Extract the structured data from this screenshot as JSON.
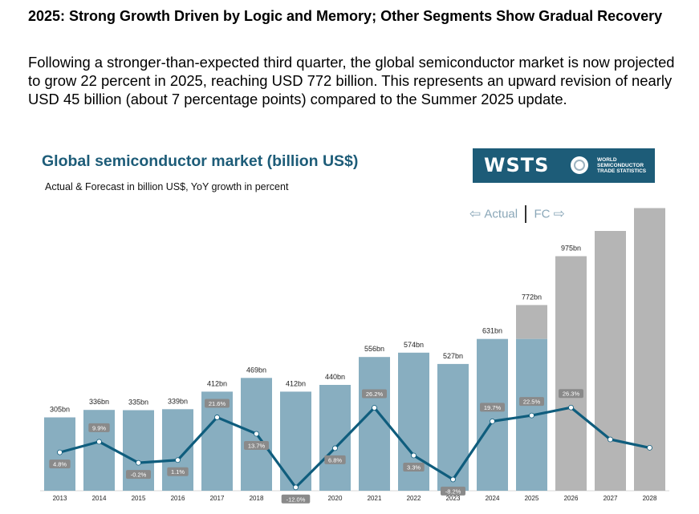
{
  "heading": "2025: Strong Growth Driven by Logic and Memory; Other Segments Show Gradual Recovery",
  "intro": "Following a stronger-than-expected third quarter, the global semiconductor market is now projected to grow 22 percent in 2025, reaching USD 772 billion. This represents an upward revision of nearly USD 45 billion (about 7 percentage points) compared to the Summer 2025 update.",
  "logo": {
    "mark": "WSTS",
    "line1": "WORLD",
    "line2": "SEMICONDUCTOR",
    "line3": "TRADE STATISTICS"
  },
  "legend": {
    "actual_arrow": "⇦",
    "actual": "Actual",
    "fc": "FC",
    "fc_arrow": "⇨"
  },
  "colors": {
    "actual_bar": "#88aec0",
    "forecast_bar": "#b5b5b5",
    "line": "#0f5d7d",
    "title": "#1d5c78",
    "label_box": "#8a8a8a"
  },
  "chart_data": {
    "type": "bar",
    "title": "Global semiconductor market (billion US$)",
    "subtitle": "Actual & Forecast in billion US$, YoY growth in percent",
    "categories": [
      "2013",
      "2014",
      "2015",
      "2016",
      "2017",
      "2018",
      "2019",
      "2020",
      "2021",
      "2022",
      "2023",
      "2024",
      "2025",
      "2026",
      "2027",
      "2028"
    ],
    "series": [
      {
        "type": "bar",
        "values": [
          305,
          336,
          335,
          339,
          412,
          469,
          412,
          440,
          556,
          574,
          527,
          631,
          772,
          975,
          1080,
          1175
        ],
        "labels": [
          "305bn",
          "336bn",
          "335bn",
          "339bn",
          "412bn",
          "469bn",
          "412bn",
          "440bn",
          "556bn",
          "574bn",
          "527bn",
          "631bn",
          "772bn",
          "975bn",
          "",
          ""
        ],
        "actual_portion_2025": 631
      },
      {
        "type": "line",
        "values": [
          4.8,
          9.9,
          -0.2,
          1.1,
          21.6,
          13.7,
          -12.0,
          6.8,
          26.2,
          3.3,
          -8.2,
          19.7,
          22.5,
          26.3,
          11,
          7
        ],
        "labels": [
          "4.8%",
          "9.9%",
          "-0.2%",
          "1.1%",
          "21.6%",
          "13.7%",
          "-12.0%",
          "6.8%",
          "26.2%",
          "3.3%",
          "-8.2%",
          "19.7%",
          "22.5%",
          "26.3%",
          "",
          ""
        ]
      }
    ],
    "actual_until": "2025",
    "forecast_from": "2026",
    "ylim": [
      0,
      1190
    ],
    "growth_range": [
      -14,
      36
    ],
    "grid": false
  }
}
